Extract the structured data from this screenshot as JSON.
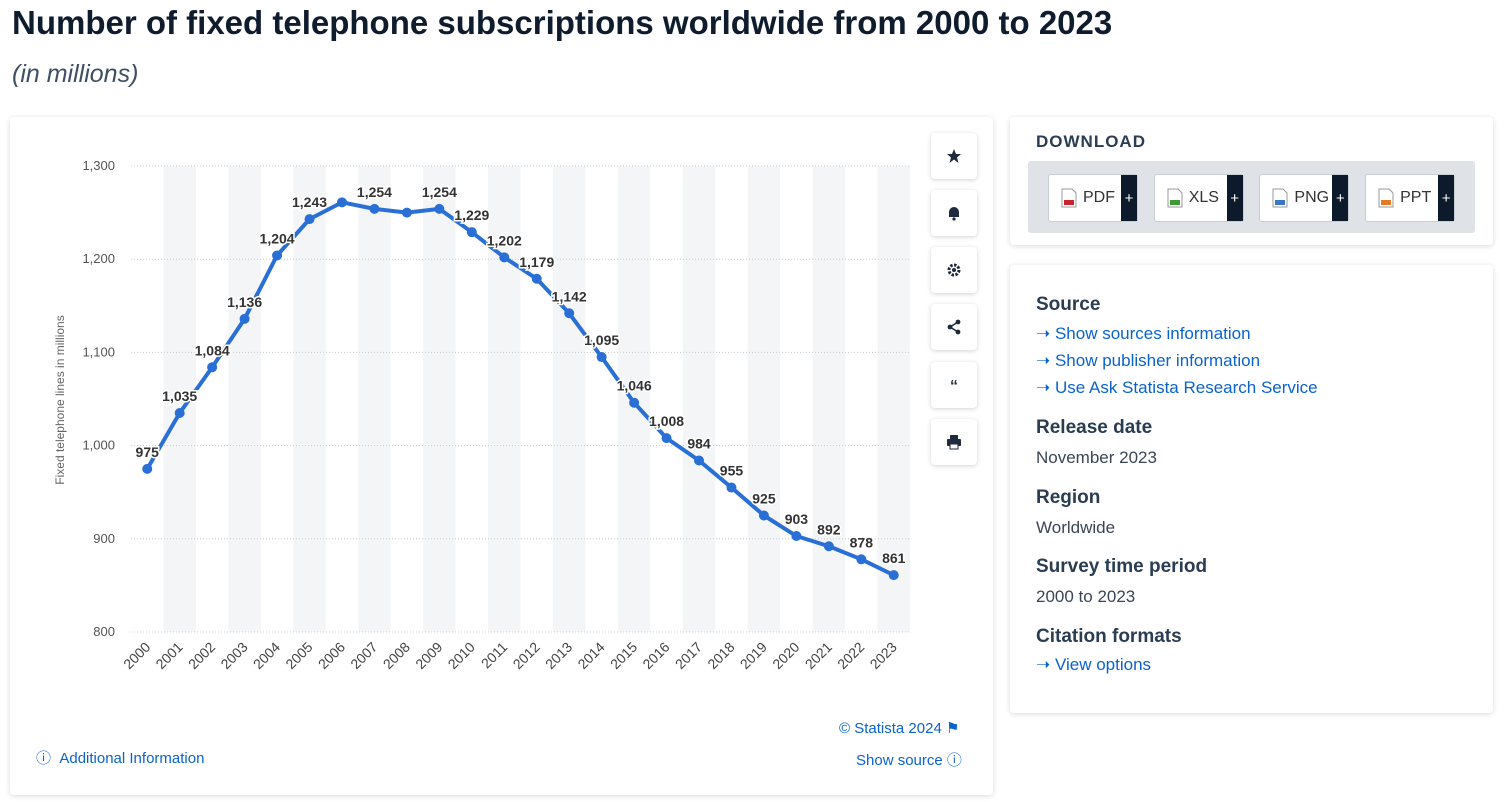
{
  "header": {
    "title": "Number of fixed telephone subscriptions worldwide from 2000 to 2023",
    "subtitle": "(in millions)"
  },
  "chart_data": {
    "type": "line",
    "y_label": "Fixed telephone lines in millions",
    "categories": [
      "2000",
      "2001",
      "2002",
      "2003",
      "2004",
      "2005",
      "2006",
      "2007",
      "2008",
      "2009",
      "2010",
      "2011",
      "2012",
      "2013",
      "2014",
      "2015",
      "2016",
      "2017",
      "2018",
      "2019",
      "2020",
      "2021",
      "2022",
      "2023"
    ],
    "values": [
      975,
      1035,
      1084,
      1136,
      1204,
      1243,
      1261,
      1254,
      1250,
      1254,
      1229,
      1202,
      1179,
      1142,
      1095,
      1046,
      1008,
      984,
      955,
      925,
      903,
      892,
      878,
      861
    ],
    "value_labels": [
      "975",
      "1,035",
      "1,084",
      "1,136",
      "1,204",
      "1,243",
      null,
      "1,254",
      null,
      "1,254",
      "1,229",
      "1,202",
      "1,179",
      "1,142",
      "1,095",
      "1,046",
      "1,008",
      "984",
      "955",
      "925",
      "903",
      "892",
      "878",
      "861"
    ],
    "color": "#2a6fd6",
    "ylim": [
      800,
      1300
    ],
    "yticks": [
      800,
      900,
      {
        "value": 1000,
        "label": "1,000"
      },
      {
        "value": 1100,
        "label": "1,100"
      },
      {
        "value": 1200,
        "label": "1,200"
      },
      {
        "value": 1300,
        "label": "1,300"
      }
    ],
    "grid": true
  },
  "chart_footer": {
    "copyright": "© Statista 2024",
    "additional_info": "Additional Information",
    "show_source": "Show source"
  },
  "download": {
    "title": "DOWNLOAD",
    "formats": [
      "PDF",
      "XLS",
      "PNG",
      "PPT"
    ]
  },
  "details": {
    "source": {
      "heading": "Source",
      "links": [
        "Show sources information",
        "Show publisher information",
        "Use Ask Statista Research Service"
      ]
    },
    "release_date": {
      "heading": "Release date",
      "value": "November 2023"
    },
    "region": {
      "heading": "Region",
      "value": "Worldwide"
    },
    "survey_period": {
      "heading": "Survey time period",
      "value": "2000 to 2023"
    },
    "citation": {
      "heading": "Citation formats",
      "link": "View options"
    }
  }
}
